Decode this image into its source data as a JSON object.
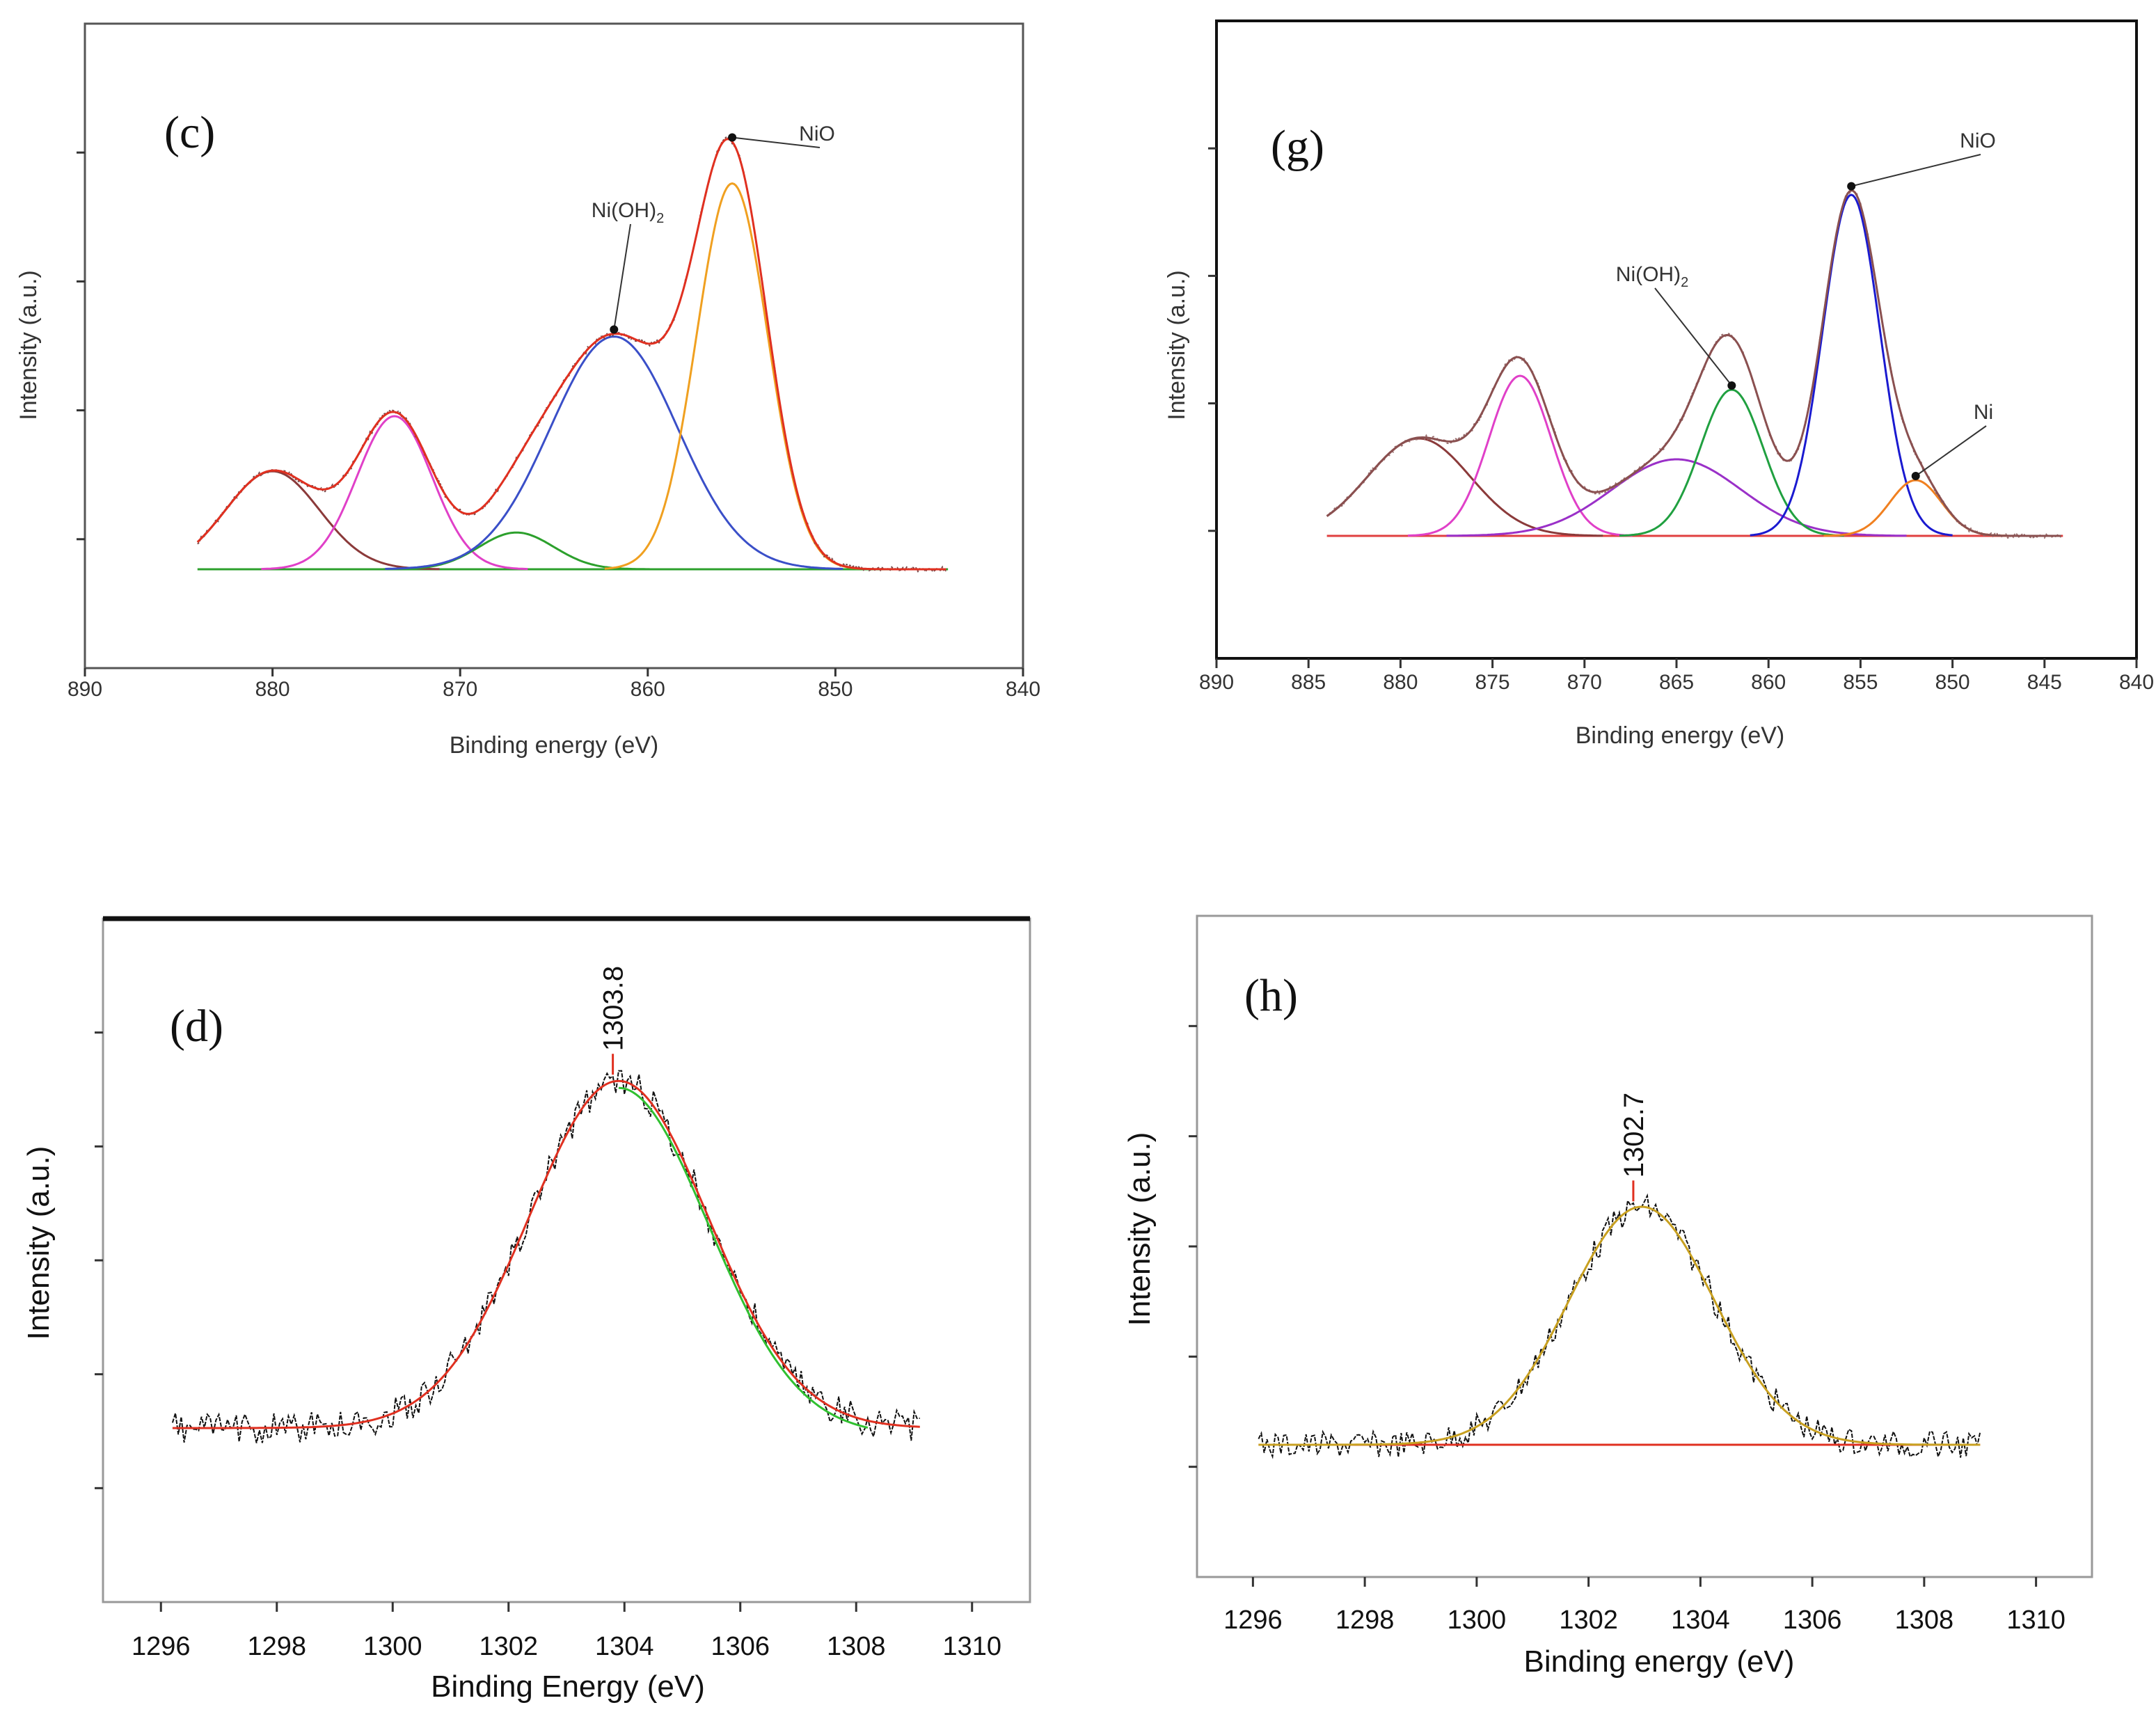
{
  "chart_data": [
    {
      "panel": "(c)",
      "type": "line",
      "title": "",
      "xlabel": "Binding energy (eV)",
      "ylabel": "Intensity (a.u.)",
      "xlim": [
        890,
        840
      ],
      "ylim": [
        0,
        100
      ],
      "x_ticks": [
        890,
        880,
        870,
        860,
        850,
        840
      ],
      "annotations": [
        {
          "text": "NiO",
          "x": 855.5
        },
        {
          "text": "Ni(OH)",
          "sub": "2",
          "x": 861.8
        }
      ],
      "baseline": 15,
      "x_range": [
        884,
        844
      ],
      "components": [
        {
          "name": "peak-880",
          "center": 880,
          "height": 16,
          "width": 2.5,
          "color": "#8b3a3a"
        },
        {
          "name": "peak-873.5",
          "center": 873.5,
          "height": 25,
          "width": 2.0,
          "color": "#e040c8"
        },
        {
          "name": "peak-867",
          "center": 867,
          "height": 6,
          "width": 2.0,
          "color": "#2ca02c"
        },
        {
          "name": "ni-oh2",
          "center": 861.8,
          "height": 38,
          "width": 3.4,
          "color": "#3a4fc8"
        },
        {
          "name": "nio",
          "center": 855.5,
          "height": 63,
          "width": 1.9,
          "color": "#f0a020"
        }
      ],
      "envelope_color": "#e03020",
      "baseline_color": "#2ca02c",
      "raw_color": "#7a4a4a"
    },
    {
      "panel": "(g)",
      "type": "line",
      "title": "",
      "xlabel": "Binding energy (eV)",
      "ylabel": "Intensity (a.u.)",
      "xlim": [
        890,
        840
      ],
      "ylim": [
        0,
        100
      ],
      "x_ticks": [
        890,
        885,
        880,
        875,
        870,
        865,
        860,
        855,
        850,
        845,
        840
      ],
      "annotations": [
        {
          "text": "NiO",
          "x": 855.5
        },
        {
          "text": "Ni(OH)",
          "sub": "2",
          "x": 862
        },
        {
          "text": "Ni",
          "x": 852
        }
      ],
      "baseline": 19,
      "x_range": [
        884,
        844
      ],
      "components": [
        {
          "name": "peak-879",
          "center": 879,
          "height": 14,
          "width": 2.8,
          "color": "#8b3a3a"
        },
        {
          "name": "peak-873.5",
          "center": 873.5,
          "height": 23,
          "width": 1.7,
          "color": "#e040c8"
        },
        {
          "name": "peak-865",
          "center": 865,
          "height": 11,
          "width": 3.5,
          "color": "#9a30c8"
        },
        {
          "name": "ni-oh2",
          "center": 862,
          "height": 21,
          "width": 1.7,
          "color": "#20a040"
        },
        {
          "name": "nio",
          "center": 855.5,
          "height": 49,
          "width": 1.55,
          "color": "#1a1ad0"
        },
        {
          "name": "ni",
          "center": 852,
          "height": 8,
          "width": 1.4,
          "color": "#f08020"
        }
      ],
      "envelope_color": "#8a5050",
      "baseline_color": "#e04040",
      "raw_color": "#9a7070"
    },
    {
      "panel": "(d)",
      "type": "line",
      "title": "",
      "xlabel": "Binding Energy (eV)",
      "ylabel": "Intensity (a.u.)",
      "xlim": [
        1295,
        1311
      ],
      "ylim": [
        0,
        100
      ],
      "x_ticks": [
        1296,
        1298,
        1300,
        1302,
        1304,
        1306,
        1308,
        1310
      ],
      "peak_label": "1303.8",
      "peak_x": 1303.8,
      "x_range": [
        1296.2,
        1309.1
      ],
      "baseline": 29,
      "fit": {
        "center": 1303.9,
        "height": 43,
        "width": 1.55
      },
      "noise": 4,
      "fit_color": "#e03020",
      "fit_secondary_color": "#30c030"
    },
    {
      "panel": "(h)",
      "type": "line",
      "title": "",
      "xlabel": "Binding energy (eV)",
      "ylabel": "Intensity (a.u.)",
      "xlim": [
        1295,
        1311
      ],
      "ylim": [
        0,
        100
      ],
      "x_ticks": [
        1296,
        1298,
        1300,
        1302,
        1304,
        1306,
        1308,
        1310
      ],
      "peak_label": "1302.7",
      "peak_x": 1302.8,
      "x_range": [
        1296.1,
        1309.0
      ],
      "baseline": 19,
      "fit": {
        "center": 1302.95,
        "height": 30,
        "width": 1.3
      },
      "noise": 3.5,
      "fit_color": "#c8a020",
      "baseline_color": "#e03020"
    }
  ]
}
